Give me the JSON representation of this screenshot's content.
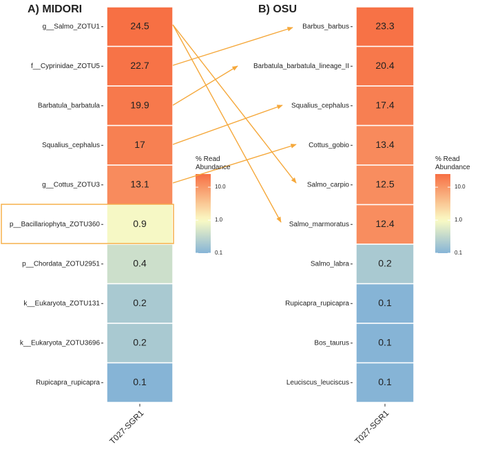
{
  "chart_data": [
    {
      "type": "heatmap",
      "title": "A) MIDORI",
      "x": [
        "T027-SGR1"
      ],
      "categories": [
        "g__Salmo_ZOTU1",
        "f__Cyprinidae_ZOTU5",
        "Barbatula_barbatula",
        "Squalius_cephalus",
        "g__Cottus_ZOTU3",
        "p__Bacillariophyta_ZOTU360",
        "p__Chordata_ZOTU2951",
        "k__Eukaryota_ZOTU131",
        "k__Eukaryota_ZOTU3696",
        "Rupicapra_rupicapra"
      ],
      "values": [
        24.5,
        22.7,
        19.9,
        17,
        13.1,
        0.9,
        0.4,
        0.2,
        0.2,
        0.1
      ],
      "legend_title": "% Read Abundance",
      "color_scale": "log",
      "clim": [
        0.1,
        25
      ],
      "color_midpoint": 1,
      "colors": [
        "#86b4d6",
        "#fbfbc4",
        "#f76f43"
      ],
      "cticks": [
        0.1,
        {
          "value": 1,
          "label": "1.0"
        },
        {
          "value": 10,
          "label": "10.0"
        }
      ]
    },
    {
      "type": "heatmap",
      "title": "B) OSU",
      "x": [
        "T027-SGR1"
      ],
      "categories": [
        "Barbus_barbus",
        "Barbatula_barbatula_lineage_II",
        "Squalius_cephalus",
        "Cottus_gobio",
        "Salmo_carpio",
        "Salmo_marmoratus",
        "Salmo_labra",
        "Rupicapra_rupicapra",
        "Bos_taurus",
        "Leuciscus_leuciscus"
      ],
      "values": [
        23.3,
        20.4,
        17.4,
        13.4,
        12.5,
        12.4,
        0.2,
        0.1,
        0.1,
        0.1
      ],
      "legend_title": "% Read Abundance",
      "color_scale": "log",
      "clim": [
        0.1,
        25
      ],
      "color_midpoint": 1,
      "colors": [
        "#86b4d6",
        "#fbfbc4",
        "#f76f43"
      ],
      "cticks": [
        0.1,
        {
          "value": 1,
          "label": "1.0"
        },
        {
          "value": 10,
          "label": "10.0"
        }
      ]
    }
  ]
}
